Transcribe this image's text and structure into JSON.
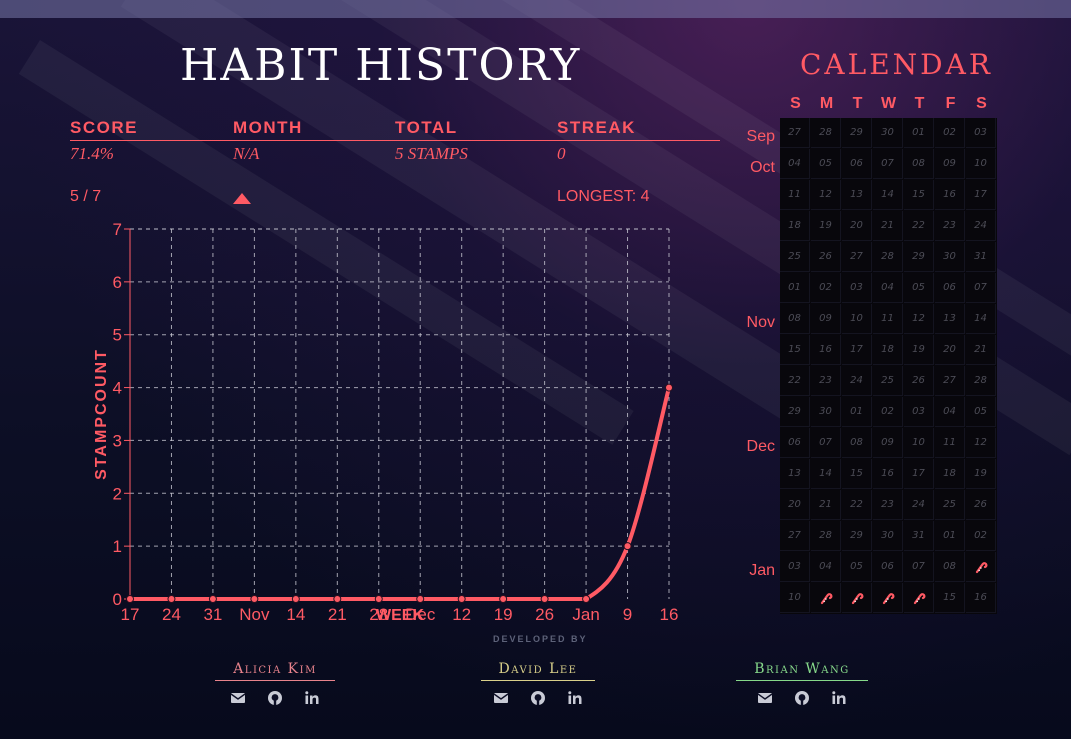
{
  "header": {
    "title": "HABIT HISTORY"
  },
  "stats": {
    "score_label": "SCORE",
    "score_value": "71.4%",
    "score_sub": "5 / 7",
    "month_label": "MONTH",
    "month_value": "N/A",
    "month_trend_icon": "triangle-up-icon",
    "total_label": "TOTAL",
    "total_value": "5 STAMPS",
    "streak_label": "STREAK",
    "streak_value": "0",
    "streak_sub": "LONGEST: 4"
  },
  "colors": {
    "accent": "#ff5a64",
    "grid": "#c8c8d2",
    "cell_bg": "#08070c",
    "cell_text": "#4c4c56"
  },
  "chart_data": {
    "type": "line",
    "title": "",
    "xlabel": "WEEK",
    "ylabel": "STAMPCOUNT",
    "categories": [
      "17",
      "24",
      "31",
      "Nov",
      "14",
      "21",
      "28",
      "Dec",
      "12",
      "19",
      "26",
      "Jan",
      "9",
      "16"
    ],
    "tick_labels": [
      "17",
      "24",
      "31",
      "Nov",
      "14",
      "21",
      "28",
      "Dec",
      "12",
      "19",
      "26",
      "Jan",
      "9",
      "16"
    ],
    "series": [
      {
        "values": [
          0,
          0,
          0,
          0,
          0,
          0,
          0,
          0,
          0,
          0,
          0,
          0,
          1,
          4
        ]
      }
    ],
    "yticks": [
      0,
      1,
      2,
      3,
      4,
      5,
      6,
      7
    ],
    "ylim": [
      0,
      7
    ],
    "grid": true
  },
  "calendar": {
    "title": "CALENDAR",
    "days_of_week": [
      "S",
      "M",
      "T",
      "W",
      "T",
      "F",
      "S"
    ],
    "weeks": [
      {
        "month": "Sep",
        "days": [
          "27",
          "28",
          "29",
          "30",
          "01",
          "02",
          "03"
        ]
      },
      {
        "month": "Oct",
        "days": [
          "04",
          "05",
          "06",
          "07",
          "08",
          "09",
          "10"
        ]
      },
      {
        "month": "",
        "days": [
          "11",
          "12",
          "13",
          "14",
          "15",
          "16",
          "17"
        ]
      },
      {
        "month": "",
        "days": [
          "18",
          "19",
          "20",
          "21",
          "22",
          "23",
          "24"
        ]
      },
      {
        "month": "",
        "days": [
          "25",
          "26",
          "27",
          "28",
          "29",
          "30",
          "31"
        ]
      },
      {
        "month": "",
        "days": [
          "01",
          "02",
          "03",
          "04",
          "05",
          "06",
          "07"
        ]
      },
      {
        "month": "Nov",
        "days": [
          "08",
          "09",
          "10",
          "11",
          "12",
          "13",
          "14"
        ]
      },
      {
        "month": "",
        "days": [
          "15",
          "16",
          "17",
          "18",
          "19",
          "20",
          "21"
        ]
      },
      {
        "month": "",
        "days": [
          "22",
          "23",
          "24",
          "25",
          "26",
          "27",
          "28"
        ]
      },
      {
        "month": "",
        "days": [
          "29",
          "30",
          "01",
          "02",
          "03",
          "04",
          "05"
        ]
      },
      {
        "month": "Dec",
        "days": [
          "06",
          "07",
          "08",
          "09",
          "10",
          "11",
          "12"
        ]
      },
      {
        "month": "",
        "days": [
          "13",
          "14",
          "15",
          "16",
          "17",
          "18",
          "19"
        ]
      },
      {
        "month": "",
        "days": [
          "20",
          "21",
          "22",
          "23",
          "24",
          "25",
          "26"
        ]
      },
      {
        "month": "",
        "days": [
          "27",
          "28",
          "29",
          "30",
          "31",
          "01",
          "02"
        ]
      },
      {
        "month": "Jan",
        "days": [
          "03",
          "04",
          "05",
          "06",
          "07",
          "08",
          "stamp"
        ]
      },
      {
        "month": "",
        "days": [
          "10",
          "stamp",
          "stamp",
          "stamp",
          "stamp",
          "15",
          "16"
        ]
      }
    ],
    "stamp_icon": "candy-cane-icon"
  },
  "footer": {
    "developed_by": "DEVELOPED BY",
    "developers": [
      {
        "name": "Alicia Kim",
        "color": "#e8838c",
        "icons": [
          "envelope-icon",
          "github-icon",
          "linkedin-icon"
        ]
      },
      {
        "name": "David Lee",
        "color": "#d9d08a",
        "icons": [
          "envelope-icon",
          "github-icon",
          "linkedin-icon"
        ]
      },
      {
        "name": "Brian Wang",
        "color": "#86d98a",
        "icons": [
          "envelope-icon",
          "github-icon",
          "linkedin-icon"
        ]
      }
    ]
  }
}
